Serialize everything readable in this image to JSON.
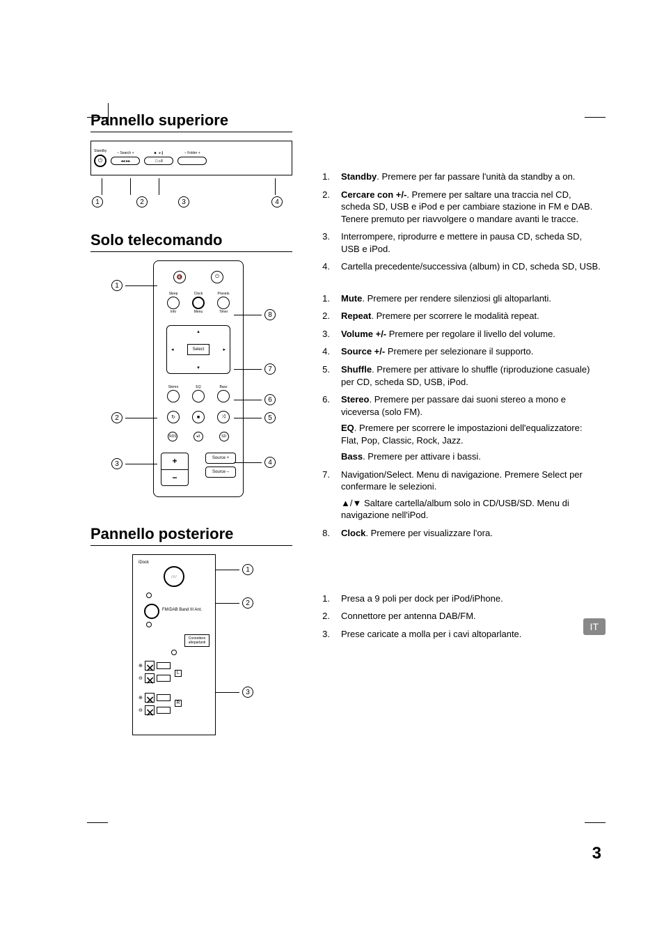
{
  "headings": {
    "top_panel": "Pannello superiore",
    "remote_only": "Solo telecomando",
    "rear_panel": "Pannello posteriore"
  },
  "top_panel_diagram": {
    "standby_label": "Standby",
    "search_label": "– Search +",
    "folder_label": "– Folder +",
    "callouts": [
      "1",
      "2",
      "3",
      "4"
    ]
  },
  "remote_diagram": {
    "btn_labels": {
      "sleep": "Sleep",
      "clock": "Clock",
      "presets": "Presets",
      "info": "Info",
      "menu": "Menu",
      "timer": "Timer",
      "stereo": "Stereo",
      "eq": "EQ",
      "bass": "Bass",
      "select": "Select",
      "source_plus": "Source +",
      "source_minus": "Source –",
      "rds": "RDS",
      "playpause": "▸‖",
      "sd": "SD"
    },
    "callouts_left": [
      "1",
      "2",
      "3"
    ],
    "callouts_right": [
      "8",
      "7",
      "6",
      "5",
      "4"
    ]
  },
  "rear_diagram": {
    "idock": "iDock",
    "ant": "FM/DAB Band III Ant.",
    "spk_label": "Connettere altoparlanti",
    "L": "L",
    "R": "R",
    "callouts": [
      "1",
      "2",
      "3"
    ]
  },
  "list_top": [
    {
      "n": "1.",
      "bold": "Standby",
      "text": ". Premere per far passare l'unità da standby a on."
    },
    {
      "n": "2.",
      "bold": "Cercare con +/-",
      "text": ". Premere per saltare una traccia nel CD, scheda SD, USB e iPod e per cambiare stazione in FM e DAB. Tenere premuto per riavvolgere o mandare avanti le tracce."
    },
    {
      "n": "3.",
      "bold": "",
      "text": "Interrompere, riprodurre e mettere in pausa CD, scheda SD, USB e iPod."
    },
    {
      "n": "4.",
      "bold": "",
      "text": "Cartella precedente/successiva (album) in CD, scheda SD, USB."
    }
  ],
  "list_remote": [
    {
      "n": "1.",
      "bold": "Mute",
      "text": ". Premere per rendere silenziosi gli altoparlanti."
    },
    {
      "n": "2.",
      "bold": "Repeat",
      "text": ". Premere per scorrere le modalità repeat."
    },
    {
      "n": "3.",
      "bold": "Volume +/-",
      "text": " Premere per regolare il livello del volume."
    },
    {
      "n": "4.",
      "bold": "Source +/-",
      "text": " Premere per selezionare il supporto."
    },
    {
      "n": "5.",
      "bold": "Shuffle",
      "text": ". Premere per attivare lo shuffle (riproduzione casuale) per CD, scheda SD, USB, iPod."
    },
    {
      "n": "6.",
      "bold": "Stereo",
      "text": ". Premere per passare dai suoni stereo a mono e viceversa (solo FM).",
      "subs": [
        {
          "bold": "EQ",
          "text": ". Premere per scorrere le impostazioni dell'equalizzatore: Flat, Pop, Classic, Rock, Jazz."
        },
        {
          "bold": "Bass",
          "text": ". Premere per attivare i bassi."
        }
      ]
    },
    {
      "n": "7.",
      "bold": "",
      "text": "Navigation/Select. Menu di navigazione. Premere Select per confermare le selezioni.",
      "subs": [
        {
          "bold": "",
          "text": "▲/▼ Saltare cartella/album solo in CD/USB/SD. Menu di navigazione nell'iPod."
        }
      ]
    },
    {
      "n": "8.",
      "bold": "Clock",
      "text": ". Premere per visualizzare l'ora."
    }
  ],
  "list_rear": [
    {
      "n": "1.",
      "bold": "",
      "text": "Presa a 9 poli per dock per iPod/iPhone."
    },
    {
      "n": "2.",
      "bold": "",
      "text": "Connettore per antenna DAB/FM."
    },
    {
      "n": "3.",
      "bold": "",
      "text": "Prese caricate a molla per i cavi altoparlante."
    }
  ],
  "lang_tab": "IT",
  "page_number": "3",
  "colors": {
    "text": "#000000",
    "bg": "#ffffff",
    "tab_bg": "#888888",
    "tab_fg": "#ffffff"
  }
}
